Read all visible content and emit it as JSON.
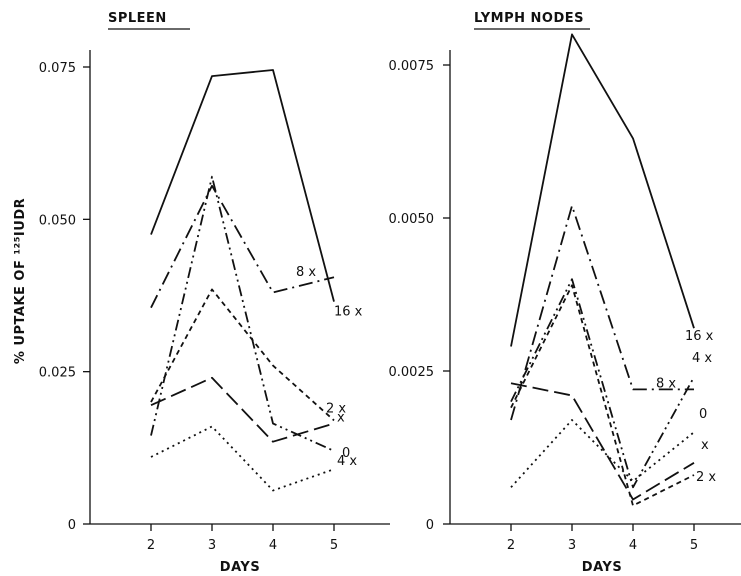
{
  "chart_data": [
    {
      "type": "line",
      "title": "SPLEEN",
      "xlabel": "DAYS",
      "ylabel": "% UPTAKE OF ¹²⁵IUDR",
      "x_ticks": [
        "2",
        "3",
        "4",
        "5"
      ],
      "y_ticks": [
        "0",
        "0.025",
        "0.050",
        "0.075"
      ],
      "xlim": [
        1,
        6
      ],
      "ylim": [
        0,
        0.08
      ],
      "grid": false,
      "series": [
        {
          "name": "16 x",
          "style": "solid",
          "x": [
            2,
            3,
            4,
            5
          ],
          "y": [
            0.0475,
            0.0735,
            0.0745,
            0.0365
          ]
        },
        {
          "name": "8 x",
          "style": "dashdot",
          "x": [
            2,
            3,
            4,
            5
          ],
          "y": [
            0.0355,
            0.0555,
            0.038,
            0.0405
          ]
        },
        {
          "name": "4 x",
          "style": "dashdotdot",
          "x": [
            2,
            3,
            4,
            5
          ],
          "y": [
            0.0145,
            0.057,
            0.0165,
            0.012
          ]
        },
        {
          "name": "2 x",
          "style": "short-dash",
          "x": [
            2,
            3,
            4,
            5
          ],
          "y": [
            0.02,
            0.0385,
            0.026,
            0.017
          ]
        },
        {
          "name": "x",
          "style": "long-dash",
          "x": [
            2,
            3,
            4,
            5
          ],
          "y": [
            0.0195,
            0.024,
            0.0135,
            0.0165
          ]
        },
        {
          "name": "0",
          "style": "dotted",
          "x": [
            2,
            3,
            4,
            5
          ],
          "y": [
            0.011,
            0.016,
            0.0055,
            0.009
          ]
        }
      ]
    },
    {
      "type": "line",
      "title": "LYMPH NODES",
      "xlabel": "DAYS",
      "ylabel": "",
      "x_ticks": [
        "2",
        "3",
        "4",
        "5"
      ],
      "y_ticks": [
        "0",
        "0.0025",
        "0.0050",
        "0.0075"
      ],
      "xlim": [
        1,
        6
      ],
      "ylim": [
        0,
        0.008
      ],
      "grid": false,
      "series": [
        {
          "name": "16 x",
          "style": "solid",
          "x": [
            2,
            3,
            4,
            5
          ],
          "y": [
            0.0029,
            0.008,
            0.0063,
            0.0032
          ]
        },
        {
          "name": "8 x",
          "style": "dashdot",
          "x": [
            2,
            3,
            4,
            5
          ],
          "y": [
            0.0017,
            0.0052,
            0.0022,
            0.0022
          ]
        },
        {
          "name": "4 x",
          "style": "dashdotdot",
          "x": [
            2,
            3,
            4,
            5
          ],
          "y": [
            0.002,
            0.004,
            0.0006,
            0.0024
          ]
        },
        {
          "name": "0",
          "style": "dotted",
          "x": [
            2,
            3,
            4,
            5
          ],
          "y": [
            0.0006,
            0.0017,
            0.0007,
            0.0015
          ]
        },
        {
          "name": "x",
          "style": "long-dash",
          "x": [
            2,
            3,
            4,
            5
          ],
          "y": [
            0.0023,
            0.0021,
            0.0004,
            0.001
          ]
        },
        {
          "name": "2 x",
          "style": "short-dash",
          "x": [
            2,
            3,
            4,
            5
          ],
          "y": [
            0.0019,
            0.0039,
            0.0003,
            0.0008
          ]
        }
      ]
    }
  ]
}
